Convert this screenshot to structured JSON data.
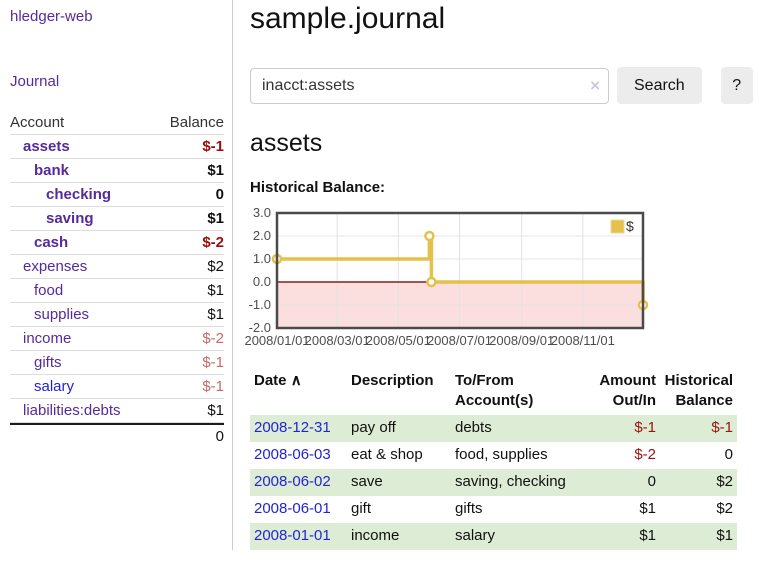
{
  "sidebar": {
    "app_title": "hledger-web",
    "nav": {
      "journal_label": "Journal"
    },
    "table": {
      "account_header": "Account",
      "balance_header": "Balance"
    },
    "accounts": [
      {
        "name": "assets",
        "balance": "$-1"
      },
      {
        "name": "bank",
        "balance": "$1"
      },
      {
        "name": "checking",
        "balance": "0"
      },
      {
        "name": "saving",
        "balance": "$1"
      },
      {
        "name": "cash",
        "balance": "$-2"
      },
      {
        "name": "expenses",
        "balance": "$2"
      },
      {
        "name": "food",
        "balance": "$1"
      },
      {
        "name": "supplies",
        "balance": "$1"
      },
      {
        "name": "income",
        "balance": "$-2"
      },
      {
        "name": "gifts",
        "balance": "$-1"
      },
      {
        "name": "salary",
        "balance": "$-1"
      },
      {
        "name": "liabilities:debts",
        "balance": "$1"
      }
    ],
    "total": "0"
  },
  "header": {
    "title": "sample.journal"
  },
  "search": {
    "query": "inacct:assets",
    "clear_icon": "×",
    "button_label": "Search",
    "help_label": "?"
  },
  "account_page": {
    "heading": "assets",
    "chart_label": "Historical Balance:"
  },
  "chart_data": {
    "type": "line",
    "title": "Historical Balance",
    "step": "after",
    "series": [
      {
        "name": "$",
        "points": [
          {
            "date": "2008/01/01",
            "value": 1
          },
          {
            "date": "2008/06/01",
            "value": 2
          },
          {
            "date": "2008/06/03",
            "value": 0
          },
          {
            "date": "2008/12/31",
            "value": -1
          }
        ]
      }
    ],
    "x_range": [
      "2008/01/01",
      "2008/12/31"
    ],
    "x_ticks": [
      "2008/01/01",
      "2008/03/01",
      "2008/05/01",
      "2008/07/01",
      "2008/09/01",
      "2008/11/01"
    ],
    "y_ticks": [
      3.0,
      2.0,
      1.0,
      0.0,
      -1.0,
      -2.0
    ],
    "ylim": [
      -2,
      3
    ],
    "legend_position": "top-right",
    "grid": true,
    "colors": {
      "line": "#e5c04a",
      "marker_fill": "#ffffff",
      "negative_region": "#fbdfdf",
      "zero_line": "#8b1d1d",
      "grid": "#e2e2e2",
      "border": "#4a4a4a"
    }
  },
  "register": {
    "headers": {
      "date": "Date",
      "description": "Description",
      "accounts": "To/From Account(s)",
      "amount": "Amount Out/In",
      "balance": "Historical Balance"
    },
    "sort_icon": "∧",
    "rows": [
      {
        "date": "2008-12-31",
        "description": "pay off",
        "accounts": "debts",
        "amount": "$-1",
        "balance": "$-1"
      },
      {
        "date": "2008-06-03",
        "description": "eat & shop",
        "accounts": "food, supplies",
        "amount": "$-2",
        "balance": "0"
      },
      {
        "date": "2008-06-02",
        "description": "save",
        "accounts": "saving, checking",
        "amount": "0",
        "balance": "$2"
      },
      {
        "date": "2008-06-01",
        "description": "gift",
        "accounts": "gifts",
        "amount": "$1",
        "balance": "$2"
      },
      {
        "date": "2008-01-01",
        "description": "income",
        "accounts": "salary",
        "amount": "$1",
        "balance": "$1"
      }
    ]
  },
  "colors": {
    "link_purple": "#552a9b",
    "link_blue": "#2323d6",
    "negative_strong": "#9c0d0d",
    "negative_soft": "#c4696b",
    "row_green": "#ddecd5"
  }
}
